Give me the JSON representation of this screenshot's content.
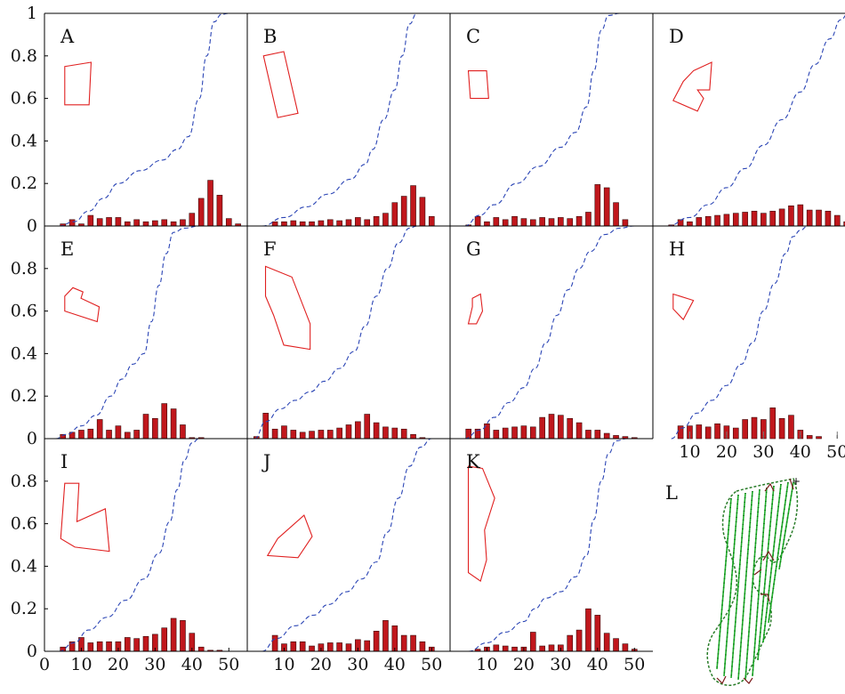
{
  "colors": {
    "bar": "#c0171c",
    "bar_edge": "#3a0a0a",
    "cdf": "#2b45b5",
    "outline": "#e02020",
    "frame": "#000000",
    "track": "#1fae2a",
    "track_dot": "#0b6e14"
  },
  "chart_data": {
    "type": "bar",
    "xlim": [
      0,
      55
    ],
    "ylim": [
      0,
      1
    ],
    "xticks": [
      "10",
      "20",
      "30",
      "40",
      "50"
    ],
    "yticks": [
      "0",
      "0.2",
      "0.4",
      "0.6",
      "0.8",
      "1"
    ],
    "bin_centers": [
      2.5,
      5,
      7.5,
      10,
      12.5,
      15,
      17.5,
      20,
      22.5,
      25,
      27.5,
      30,
      32.5,
      35,
      37.5,
      40,
      42.5,
      45,
      47.5,
      50,
      52.5
    ],
    "series_encoding": "bars = histogram frequency per bin; dashed line = cumulative distribution",
    "panels": [
      {
        "label": "A",
        "bars": [
          0,
          0.01,
          0.03,
          0.01,
          0.05,
          0.035,
          0.04,
          0.04,
          0.02,
          0.03,
          0.02,
          0.025,
          0.03,
          0.02,
          0.03,
          0.06,
          0.13,
          0.215,
          0.145,
          0.035,
          0.01
        ],
        "cdf": [
          [
            4,
            0
          ],
          [
            8,
            0.02
          ],
          [
            12,
            0.07
          ],
          [
            16,
            0.13
          ],
          [
            20,
            0.2
          ],
          [
            26,
            0.26
          ],
          [
            32,
            0.31
          ],
          [
            36,
            0.36
          ],
          [
            39,
            0.42
          ],
          [
            42,
            0.6
          ],
          [
            44,
            0.8
          ],
          [
            46,
            0.96
          ],
          [
            48,
            0.995
          ],
          [
            50,
            1
          ]
        ]
      },
      {
        "label": "B",
        "bars": [
          0,
          0,
          0.02,
          0.02,
          0.025,
          0.02,
          0.02,
          0.025,
          0.03,
          0.025,
          0.03,
          0.04,
          0.03,
          0.045,
          0.06,
          0.11,
          0.14,
          0.19,
          0.135,
          0.045,
          0
        ],
        "cdf": [
          [
            4,
            0
          ],
          [
            10,
            0.04
          ],
          [
            16,
            0.09
          ],
          [
            22,
            0.15
          ],
          [
            28,
            0.22
          ],
          [
            32,
            0.29
          ],
          [
            34,
            0.36
          ],
          [
            37,
            0.5
          ],
          [
            40,
            0.64
          ],
          [
            42,
            0.8
          ],
          [
            44,
            0.95
          ],
          [
            46,
            1
          ]
        ]
      },
      {
        "label": "C",
        "bars": [
          0,
          0.005,
          0.045,
          0.02,
          0.04,
          0.03,
          0.045,
          0.035,
          0.03,
          0.04,
          0.035,
          0.04,
          0.035,
          0.045,
          0.065,
          0.195,
          0.18,
          0.11,
          0.03,
          0,
          0
        ],
        "cdf": [
          [
            4,
            0
          ],
          [
            8,
            0.05
          ],
          [
            12,
            0.1
          ],
          [
            18,
            0.2
          ],
          [
            24,
            0.28
          ],
          [
            30,
            0.37
          ],
          [
            34,
            0.44
          ],
          [
            37,
            0.56
          ],
          [
            39,
            0.73
          ],
          [
            41,
            0.92
          ],
          [
            43,
            0.99
          ],
          [
            46,
            1
          ]
        ]
      },
      {
        "label": "D",
        "bars": [
          0,
          0.005,
          0.03,
          0.02,
          0.04,
          0.045,
          0.05,
          0.055,
          0.06,
          0.065,
          0.07,
          0.06,
          0.07,
          0.08,
          0.095,
          0.1,
          0.075,
          0.075,
          0.07,
          0.05,
          0.02
        ],
        "cdf": [
          [
            4,
            0
          ],
          [
            10,
            0.04
          ],
          [
            15,
            0.1
          ],
          [
            20,
            0.18
          ],
          [
            25,
            0.27
          ],
          [
            30,
            0.38
          ],
          [
            35,
            0.5
          ],
          [
            40,
            0.63
          ],
          [
            44,
            0.76
          ],
          [
            48,
            0.88
          ],
          [
            51,
            0.97
          ],
          [
            53,
            1
          ]
        ]
      },
      {
        "label": "E",
        "bars": [
          0,
          0.02,
          0.03,
          0.04,
          0.045,
          0.09,
          0.04,
          0.06,
          0.03,
          0.04,
          0.115,
          0.095,
          0.165,
          0.14,
          0.065,
          0.005,
          0.005,
          0,
          0,
          0,
          0
        ],
        "cdf": [
          [
            3,
            0
          ],
          [
            6,
            0.02
          ],
          [
            10,
            0.06
          ],
          [
            14,
            0.11
          ],
          [
            18,
            0.2
          ],
          [
            21,
            0.28
          ],
          [
            24,
            0.35
          ],
          [
            27,
            0.4
          ],
          [
            29,
            0.55
          ],
          [
            31,
            0.72
          ],
          [
            33,
            0.87
          ],
          [
            35,
            0.97
          ],
          [
            38,
            0.99
          ],
          [
            42,
            1
          ]
        ]
      },
      {
        "label": "F",
        "bars": [
          0.01,
          0.12,
          0.045,
          0.06,
          0.04,
          0.03,
          0.035,
          0.04,
          0.04,
          0.05,
          0.065,
          0.08,
          0.115,
          0.075,
          0.055,
          0.05,
          0.045,
          0.02,
          0.005,
          0,
          0
        ],
        "cdf": [
          [
            2,
            0
          ],
          [
            5,
            0.08
          ],
          [
            9,
            0.14
          ],
          [
            13,
            0.18
          ],
          [
            17,
            0.22
          ],
          [
            21,
            0.27
          ],
          [
            25,
            0.33
          ],
          [
            29,
            0.41
          ],
          [
            32,
            0.53
          ],
          [
            35,
            0.67
          ],
          [
            38,
            0.8
          ],
          [
            41,
            0.92
          ],
          [
            44,
            0.99
          ],
          [
            46,
            1
          ]
        ]
      },
      {
        "label": "G",
        "bars": [
          0,
          0.045,
          0.045,
          0.07,
          0.04,
          0.05,
          0.055,
          0.06,
          0.055,
          0.1,
          0.115,
          0.11,
          0.095,
          0.075,
          0.04,
          0.04,
          0.025,
          0.015,
          0.01,
          0.005,
          0
        ],
        "cdf": [
          [
            4,
            0
          ],
          [
            8,
            0.04
          ],
          [
            12,
            0.1
          ],
          [
            16,
            0.17
          ],
          [
            20,
            0.24
          ],
          [
            23,
            0.33
          ],
          [
            26,
            0.45
          ],
          [
            29,
            0.58
          ],
          [
            32,
            0.7
          ],
          [
            35,
            0.8
          ],
          [
            38,
            0.88
          ],
          [
            42,
            0.96
          ],
          [
            46,
            0.99
          ],
          [
            50,
            1
          ]
        ]
      },
      {
        "label": "H",
        "bars": [
          0,
          0,
          0.06,
          0.06,
          0.065,
          0.055,
          0.07,
          0.06,
          0.05,
          0.09,
          0.1,
          0.09,
          0.145,
          0.095,
          0.11,
          0.04,
          0.015,
          0.01,
          0,
          0,
          0
        ],
        "cdf": [
          [
            5,
            0
          ],
          [
            8,
            0.05
          ],
          [
            12,
            0.12
          ],
          [
            16,
            0.18
          ],
          [
            20,
            0.25
          ],
          [
            24,
            0.35
          ],
          [
            27,
            0.45
          ],
          [
            30,
            0.6
          ],
          [
            33,
            0.73
          ],
          [
            36,
            0.87
          ],
          [
            38,
            0.95
          ],
          [
            40,
            0.98
          ],
          [
            42,
            1
          ]
        ]
      },
      {
        "label": "I",
        "bars": [
          0,
          0.02,
          0.045,
          0.065,
          0.04,
          0.045,
          0.045,
          0.045,
          0.065,
          0.06,
          0.07,
          0.08,
          0.11,
          0.155,
          0.145,
          0.085,
          0.02,
          0.005,
          0.005,
          0,
          0
        ],
        "cdf": [
          [
            4,
            0
          ],
          [
            8,
            0.04
          ],
          [
            12,
            0.1
          ],
          [
            17,
            0.16
          ],
          [
            22,
            0.24
          ],
          [
            27,
            0.34
          ],
          [
            31,
            0.46
          ],
          [
            34,
            0.61
          ],
          [
            36,
            0.76
          ],
          [
            38,
            0.9
          ],
          [
            40,
            0.98
          ],
          [
            42,
            1
          ]
        ]
      },
      {
        "label": "J",
        "bars": [
          0,
          0,
          0.075,
          0.035,
          0.045,
          0.045,
          0.025,
          0.035,
          0.04,
          0.04,
          0.035,
          0.055,
          0.05,
          0.095,
          0.145,
          0.12,
          0.075,
          0.075,
          0.045,
          0.02,
          0
        ],
        "cdf": [
          [
            4,
            0
          ],
          [
            8,
            0.06
          ],
          [
            13,
            0.12
          ],
          [
            18,
            0.17
          ],
          [
            22,
            0.22
          ],
          [
            27,
            0.28
          ],
          [
            31,
            0.34
          ],
          [
            35,
            0.42
          ],
          [
            38,
            0.56
          ],
          [
            41,
            0.72
          ],
          [
            44,
            0.87
          ],
          [
            47,
            0.96
          ],
          [
            50,
            1
          ]
        ]
      },
      {
        "label": "K",
        "bars": [
          0,
          0,
          0.01,
          0.02,
          0.03,
          0.025,
          0.02,
          0.02,
          0.09,
          0.025,
          0.03,
          0.03,
          0.075,
          0.1,
          0.2,
          0.17,
          0.085,
          0.06,
          0.035,
          0.01,
          0
        ],
        "cdf": [
          [
            5,
            0
          ],
          [
            10,
            0.04
          ],
          [
            15,
            0.09
          ],
          [
            20,
            0.14
          ],
          [
            23,
            0.2
          ],
          [
            26,
            0.25
          ],
          [
            30,
            0.28
          ],
          [
            34,
            0.35
          ],
          [
            37,
            0.45
          ],
          [
            39,
            0.62
          ],
          [
            41,
            0.8
          ],
          [
            43,
            0.93
          ],
          [
            45,
            0.99
          ],
          [
            48,
            1
          ]
        ]
      }
    ],
    "panel_L_label": "L"
  }
}
